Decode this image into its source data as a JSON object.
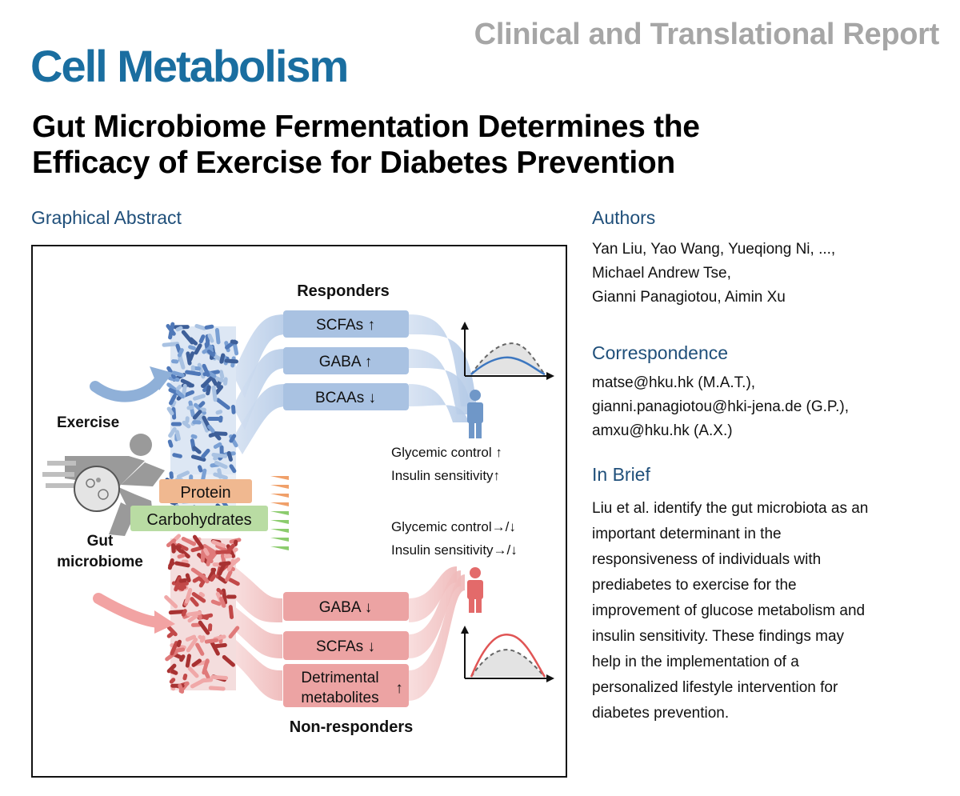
{
  "header": {
    "report_type": "Clinical and Translational Report",
    "journal": "Cell Metabolism",
    "title_line1": "Gut Microbiome Fermentation Determines the",
    "title_line2": "Efficacy of Exercise for Diabetes Prevention"
  },
  "graphical_abstract": {
    "heading": "Graphical Abstract",
    "responders_label": "Responders",
    "non_responders_label": "Non-responders",
    "exercise_label": "Exercise",
    "gut_label": "Gut",
    "microbiome_label": "microbiome",
    "responder_boxes": [
      "SCFAs ↑",
      "GABA  ↑",
      "BCAAs ↓"
    ],
    "nonresponder_boxes": [
      "GABA ↓",
      "SCFAs ↓"
    ],
    "detrimental_line1": "Detrimental",
    "detrimental_line2": "metabolites",
    "detrimental_arrow": "↑",
    "protein_label": "Protein",
    "carbohydrates_label": "Carbohydrates",
    "responder_outcomes": [
      "Glycemic control ↑",
      "Insulin sensitivity↑"
    ],
    "nonresponder_outcomes": [
      "Glycemic control→/↓",
      "Insulin sensitivity→/↓"
    ],
    "colors": {
      "responder_blue": "#6f97c8",
      "responder_box": "#a9c2e2",
      "nonresponder_red": "#d96b6b",
      "nonresponder_box": "#eca3a3",
      "protein": "#f0b890",
      "carbohydrates": "#b9dca3",
      "runner_gray": "#9a9a9a"
    }
  },
  "authors": {
    "heading": "Authors",
    "lines": [
      "Yan Liu, Yao Wang, Yueqiong Ni, ...,",
      "Michael Andrew Tse,",
      "Gianni Panagiotou, Aimin Xu"
    ]
  },
  "correspondence": {
    "heading": "Correspondence",
    "lines": [
      "matse@hku.hk (M.A.T.),",
      "gianni.panagiotou@hki-jena.de (G.P.),",
      "amxu@hku.hk (A.X.)"
    ]
  },
  "in_brief": {
    "heading": "In Brief",
    "lines": [
      "Liu et al. identify the gut microbiota as an",
      "important determinant in the",
      "responsiveness of individuals with",
      "prediabetes to exercise for the",
      "improvement of glucose metabolism and",
      "insulin sensitivity. These findings may",
      "help in the implementation of a",
      "personalized lifestyle intervention for",
      "diabetes prevention."
    ]
  }
}
